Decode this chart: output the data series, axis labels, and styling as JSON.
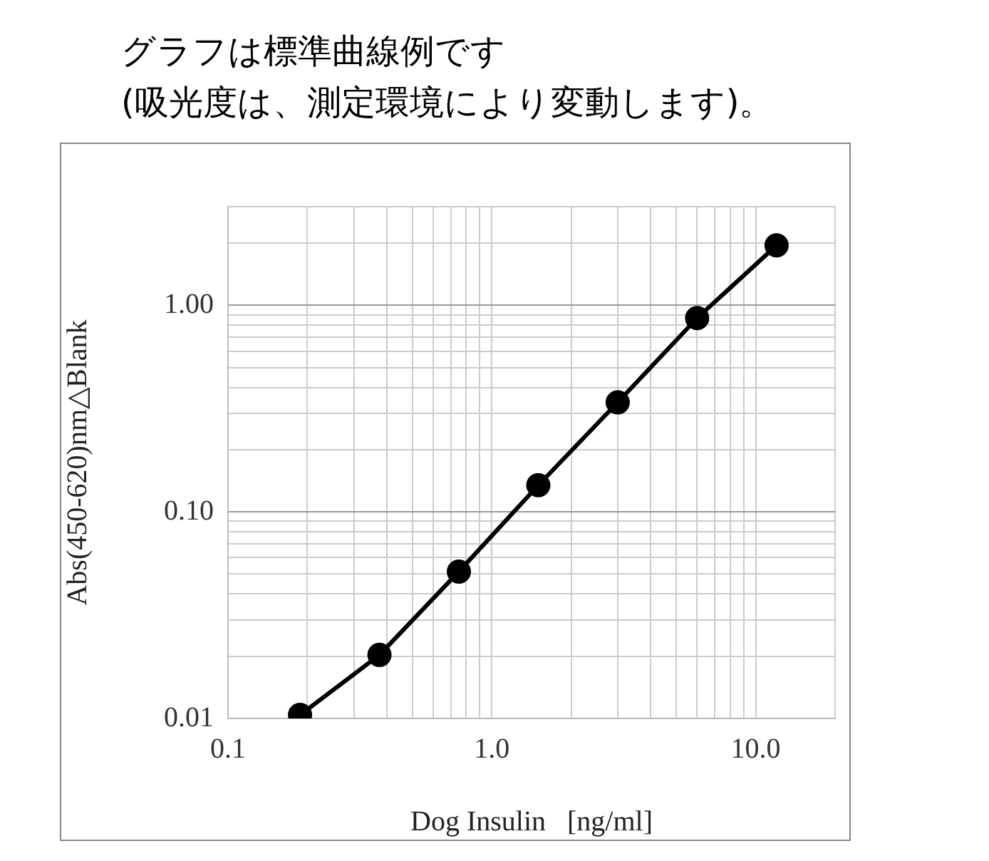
{
  "chart_data": {
    "type": "line",
    "title": "グラフは標準曲線例です",
    "subtitle": "(吸光度は、測定環境により変動します)。",
    "xlabel": "Dog Insulin   [ng/ml]",
    "ylabel": "Abs(450-620)nm△Blank",
    "x": [
      0.1875,
      0.375,
      0.75,
      1.5,
      3,
      6,
      12
    ],
    "series": [
      {
        "color": "#000000",
        "values": [
          0.0104,
          0.0203,
          0.0514,
          0.1345,
          0.339,
          0.867,
          1.95
        ]
      }
    ],
    "xlim": [
      0.1,
      20
    ],
    "ylim": [
      0.01,
      3
    ],
    "xticks": [
      0.1,
      {
        "value": 0.2,
        "label": null
      },
      {
        "value": 0.3,
        "label": null
      },
      {
        "value": 0.4,
        "label": null
      },
      {
        "value": 0.5,
        "label": null
      },
      {
        "value": 0.6,
        "label": null
      },
      {
        "value": 0.7,
        "label": null
      },
      {
        "value": 0.8,
        "label": null
      },
      {
        "value": 0.9,
        "label": null
      },
      {
        "value": 1,
        "label": "1.0"
      },
      {
        "value": 2,
        "label": null
      },
      {
        "value": 3,
        "label": null
      },
      {
        "value": 4,
        "label": null
      },
      {
        "value": 5,
        "label": null
      },
      {
        "value": 6,
        "label": null
      },
      {
        "value": 7,
        "label": null
      },
      {
        "value": 8,
        "label": null
      },
      {
        "value": 9,
        "label": null
      },
      {
        "value": 10,
        "label": "10.0"
      },
      {
        "value": 20,
        "label": null
      }
    ],
    "yticks": [
      0.01,
      {
        "value": 0.02,
        "label": null
      },
      {
        "value": 0.03,
        "label": null
      },
      {
        "value": 0.04,
        "label": null
      },
      {
        "value": 0.05,
        "label": null
      },
      {
        "value": 0.06,
        "label": null
      },
      {
        "value": 0.07,
        "label": null
      },
      {
        "value": 0.08,
        "label": null
      },
      {
        "value": 0.09,
        "label": null
      },
      {
        "value": 0.1,
        "label": "0.10"
      },
      {
        "value": 0.2,
        "label": null
      },
      {
        "value": 0.3,
        "label": null
      },
      {
        "value": 0.4,
        "label": null
      },
      {
        "value": 0.5,
        "label": null
      },
      {
        "value": 0.6,
        "label": null
      },
      {
        "value": 0.7,
        "label": null
      },
      {
        "value": 0.8,
        "label": null
      },
      {
        "value": 0.9,
        "label": null
      },
      {
        "value": 1,
        "label": "1.00"
      },
      {
        "value": 2,
        "label": null
      },
      {
        "value": 3,
        "label": null
      }
    ],
    "log": "xy",
    "grid": true,
    "marker": "circle",
    "line_style": "solid"
  }
}
